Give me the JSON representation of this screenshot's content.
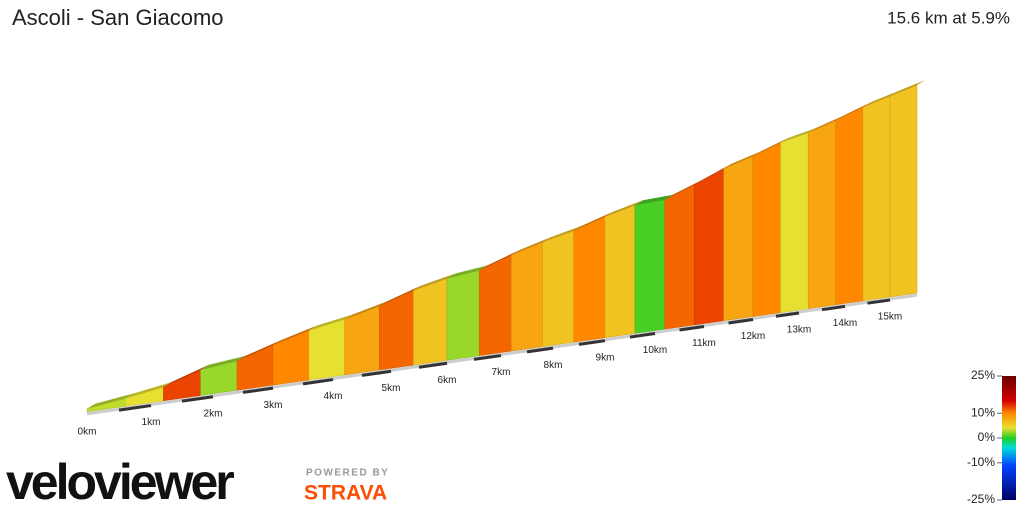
{
  "chart_data": {
    "type": "elevation-profile",
    "title": "Ascoli - San Giacomo",
    "summary": "15.6 km at 5.9%",
    "x": [
      0,
      0.6,
      1.2,
      1.8,
      2.4,
      3.0,
      3.6,
      4.2,
      4.8,
      5.4,
      6.0,
      6.6,
      7.2,
      7.8,
      8.4,
      9.0,
      9.6,
      10.2,
      10.8,
      11.4,
      12.0,
      12.6,
      13.2,
      13.8,
      14.4,
      15.0
    ],
    "values": [
      4,
      5,
      10,
      3,
      9,
      8,
      5,
      7,
      9,
      6,
      3,
      9,
      7,
      6,
      8,
      6,
      1,
      9,
      10,
      7,
      8,
      5,
      7,
      8,
      6,
      6
    ],
    "xlim": [
      0,
      15.6
    ],
    "xticks": [
      {
        "value": 0,
        "label": "0km"
      },
      {
        "value": 1,
        "label": "1km"
      },
      {
        "value": 2,
        "label": "2km"
      },
      {
        "value": 3,
        "label": "3km"
      },
      {
        "value": 4,
        "label": "4km"
      },
      {
        "value": 5,
        "label": "5km"
      },
      {
        "value": 6,
        "label": "6km"
      },
      {
        "value": 7,
        "label": "7km"
      },
      {
        "value": 8,
        "label": "8km"
      },
      {
        "value": 9,
        "label": "9km"
      },
      {
        "value": 10,
        "label": "10km"
      },
      {
        "value": 11,
        "label": "11km"
      },
      {
        "value": 12,
        "label": "12km"
      },
      {
        "value": 13,
        "label": "13km"
      },
      {
        "value": 14,
        "label": "14km"
      },
      {
        "value": 15,
        "label": "15km"
      }
    ],
    "color_scale_ticks": [
      {
        "value": 25,
        "label": "25%"
      },
      {
        "value": 10,
        "label": "10%"
      },
      {
        "value": 0,
        "label": "0%"
      },
      {
        "value": -10,
        "label": "-10%"
      },
      {
        "value": -25,
        "label": "-25%"
      }
    ],
    "branding": {
      "logo": "veloviewer",
      "powered_by": "POWERED BY",
      "partner": "STRAVA"
    }
  }
}
